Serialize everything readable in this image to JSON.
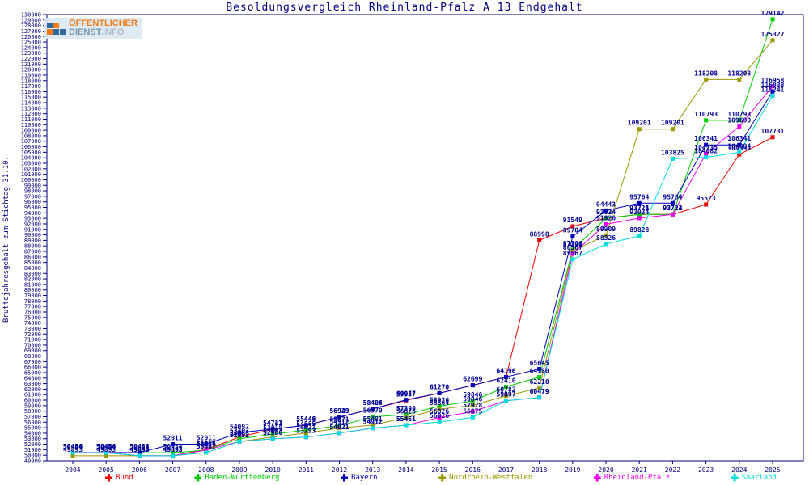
{
  "title": "Besoldungsvergleich Rheinland-Pfalz A 13 Endgehalt",
  "ylabel": "Bruttojahresgehalt zum Stichtag 31.10.",
  "logo": {
    "word1": "ÖFFENTLICHER",
    "word2": "DIENST",
    "word3": ".INFO"
  },
  "chart_data": {
    "type": "line",
    "x": [
      2004,
      2005,
      2006,
      2007,
      2008,
      2009,
      2010,
      2011,
      2012,
      2013,
      2014,
      2015,
      2016,
      2017,
      2018,
      2019,
      2020,
      2021,
      2022,
      2023,
      2024,
      2025
    ],
    "ylim": [
      49000,
      130000
    ],
    "ytick_step": 1000,
    "grid": false,
    "legend_position": "bottom",
    "axis_color": "#000080",
    "label_color": "#000099",
    "series": [
      {
        "name": "Bund",
        "color": "#ee0000",
        "values": [
          50454,
          50454,
          49893,
          49893,
          51055,
          53307,
          54713,
          55448,
          56929,
          58404,
          59957,
          61270,
          62699,
          64196,
          88998,
          91549,
          93034,
          93721,
          93721,
          95523,
          104594,
          107731
        ]
      },
      {
        "name": "Baden-Württemberg",
        "color": "#00cc00",
        "values": [
          50454,
          50454,
          50454,
          50454,
          50916,
          52988,
          53818,
          54565,
          55371,
          56970,
          57390,
          58926,
          59846,
          62410,
          64180,
          87306,
          93024,
          93724,
          93724,
          110793,
          110793,
          129142
        ]
      },
      {
        "name": "Bayern",
        "color": "#0000bb",
        "values": [
          50486,
          50486,
          50486,
          52011,
          52011,
          54092,
          54741,
          55446,
          56943,
          58426,
          60057,
          61270,
          62699,
          64196,
          65645,
          89704,
          94443,
          95764,
          95764,
          106341,
          106341,
          116038
        ]
      },
      {
        "name": "Nordrhein-Westfalen",
        "color": "#999900",
        "values": [
          49893,
          49893,
          49893,
          49893,
          50487,
          52492,
          53293,
          54021,
          54912,
          55481,
          56826,
          58364,
          59046,
          60782,
          62210,
          87121,
          89909,
          109201,
          109201,
          118208,
          118208,
          125327
        ]
      },
      {
        "name": "Rheinland-Pfalz",
        "color": "#ee00ee",
        "values": [
          50454,
          50454,
          49893,
          49893,
          50916,
          52492,
          52986,
          53293,
          54021,
          54912,
          55461,
          56826,
          57928,
          59897,
          60479,
          86567,
          91926,
          93034,
          93722,
          104735,
          109690,
          116958
        ]
      },
      {
        "name": "Saarland",
        "color": "#00dddd",
        "values": [
          50454,
          50454,
          49893,
          49893,
          50487,
          52492,
          52986,
          53293,
          54021,
          54912,
          55461,
          56026,
          56875,
          59897,
          60479,
          85567,
          88326,
          89828,
          103825,
          104082,
          104994,
          115241
        ]
      }
    ]
  }
}
